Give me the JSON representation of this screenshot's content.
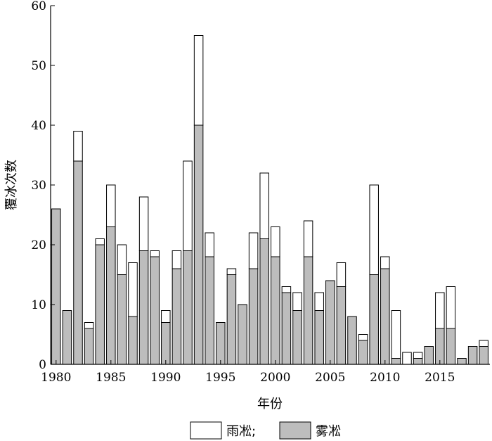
{
  "chart_data": {
    "type": "bar",
    "stacked": true,
    "xlabel": "年份",
    "ylabel": "覆冰次数",
    "ylim": [
      0,
      60
    ],
    "yticks": [
      0,
      10,
      20,
      30,
      40,
      50,
      60
    ],
    "xticks": [
      1980,
      1985,
      1990,
      1995,
      2000,
      2005,
      2010,
      2015
    ],
    "grid": false,
    "legend_position": "bottom",
    "x": [
      1980,
      1981,
      1982,
      1983,
      1984,
      1985,
      1986,
      1987,
      1988,
      1989,
      1990,
      1991,
      1992,
      1993,
      1994,
      1995,
      1996,
      1997,
      1998,
      1999,
      2000,
      2001,
      2002,
      2003,
      2004,
      2005,
      2006,
      2007,
      2008,
      2009,
      2010,
      2011,
      2012,
      2013,
      2014,
      2015,
      2016,
      2017,
      2018,
      2019
    ],
    "series": [
      {
        "name": "雾凇",
        "color": "#bdbdbd",
        "values": [
          26,
          9,
          34,
          6,
          20,
          23,
          15,
          8,
          19,
          18,
          7,
          16,
          19,
          40,
          18,
          7,
          15,
          10,
          16,
          21,
          18,
          12,
          9,
          18,
          9,
          14,
          13,
          8,
          4,
          15,
          16,
          1,
          0,
          1,
          3,
          6,
          6,
          1,
          3,
          3
        ]
      },
      {
        "name": "雨凇;",
        "color": "#ffffff",
        "values": [
          0,
          0,
          5,
          1,
          1,
          7,
          5,
          9,
          9,
          1,
          2,
          3,
          15,
          15,
          4,
          0,
          1,
          0,
          6,
          11,
          5,
          1,
          3,
          6,
          3,
          0,
          4,
          0,
          1,
          15,
          2,
          8,
          2,
          1,
          0,
          6,
          7,
          0,
          0,
          1
        ]
      }
    ]
  }
}
